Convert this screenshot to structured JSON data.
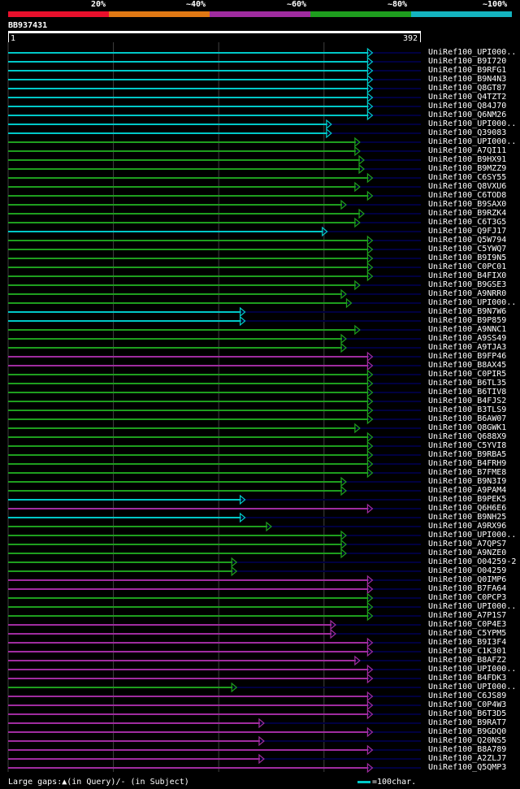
{
  "identity_legend": {
    "labels": [
      "20%",
      "~40%",
      "~60%",
      "~80%",
      "~100%"
    ],
    "colors": [
      "#e8102c",
      "#e07814",
      "#a02ca0",
      "#1e9e1e",
      "#14b4c0"
    ]
  },
  "query": {
    "id": "BB937431",
    "start": "1",
    "end": "392",
    "length": 392
  },
  "colors": {
    "background": "#000000",
    "track": "#000040",
    "grid": "#404040",
    "cyan": "#00c8c8",
    "green": "#1e9e1e",
    "magenta": "#a02ca0",
    "gap_marker": "#ffffa0"
  },
  "hits": [
    {
      "label": "UniRef100_UPI000..",
      "color": "cyan",
      "end": 346
    },
    {
      "label": "UniRef100_B9I720",
      "color": "cyan",
      "end": 346
    },
    {
      "label": "UniRef100_B9RFG1",
      "color": "cyan",
      "end": 346
    },
    {
      "label": "UniRef100_B9N4N3",
      "color": "cyan",
      "end": 346
    },
    {
      "label": "UniRef100_Q8GT87",
      "color": "cyan",
      "end": 346
    },
    {
      "label": "UniRef100_Q4TZT2",
      "color": "cyan",
      "end": 346
    },
    {
      "label": "UniRef100_Q84J70",
      "color": "cyan",
      "end": 346
    },
    {
      "label": "UniRef100_Q6NM26",
      "color": "cyan",
      "end": 346
    },
    {
      "label": "UniRef100_UPI000..",
      "color": "cyan",
      "end": 307
    },
    {
      "label": "UniRef100_Q39083",
      "color": "cyan",
      "end": 307
    },
    {
      "label": "UniRef100_UPI000..",
      "color": "green",
      "end": 334
    },
    {
      "label": "UniRef100_A7QI11",
      "color": "green",
      "end": 334
    },
    {
      "label": "UniRef100_B9HX91",
      "color": "green",
      "end": 338
    },
    {
      "label": "UniRef100_B9MZZ9",
      "color": "green",
      "end": 338
    },
    {
      "label": "UniRef100_C6SY55",
      "color": "green",
      "end": 346
    },
    {
      "label": "UniRef100_Q8VXU6",
      "color": "green",
      "end": 334
    },
    {
      "label": "UniRef100_C6TOD8",
      "color": "green",
      "end": 346
    },
    {
      "label": "UniRef100_B9SAX0",
      "color": "green",
      "end": 321
    },
    {
      "label": "UniRef100_B9RZK4",
      "color": "green",
      "end": 338
    },
    {
      "label": "UniRef100_C6T3G5",
      "color": "green",
      "end": 334
    },
    {
      "label": "UniRef100_Q9FJ17",
      "color": "cyan",
      "end": 303
    },
    {
      "label": "UniRef100_Q5W794",
      "color": "green",
      "end": 346
    },
    {
      "label": "UniRef100_C5YWQ7",
      "color": "green",
      "end": 346
    },
    {
      "label": "UniRef100_B9I9N5",
      "color": "green",
      "end": 346
    },
    {
      "label": "UniRef100_C0PC01",
      "color": "green",
      "end": 346
    },
    {
      "label": "UniRef100_B4FIX0",
      "color": "green",
      "end": 346
    },
    {
      "label": "UniRef100_B9GSE3",
      "color": "green",
      "end": 334
    },
    {
      "label": "UniRef100_A9NRR0",
      "color": "green",
      "end": 321
    },
    {
      "label": "UniRef100_UPI000..",
      "color": "green",
      "end": 326
    },
    {
      "label": "UniRef100_B9N7W6",
      "color": "cyan",
      "end": 225
    },
    {
      "label": "UniRef100_B9P859",
      "color": "cyan",
      "end": 225
    },
    {
      "label": "UniRef100_A9NNC1",
      "color": "green",
      "end": 334
    },
    {
      "label": "UniRef100_A9SS49",
      "color": "green",
      "end": 321
    },
    {
      "label": "UniRef100_A9TJA3",
      "color": "green",
      "end": 321
    },
    {
      "label": "UniRef100_B9FP46",
      "color": "magenta",
      "end": 346
    },
    {
      "label": "UniRef100_B8AX45",
      "color": "magenta",
      "end": 346
    },
    {
      "label": "UniRef100_C0PIR5",
      "color": "green",
      "end": 346
    },
    {
      "label": "UniRef100_B6TL35",
      "color": "green",
      "end": 346
    },
    {
      "label": "UniRef100_B6TIV8",
      "color": "green",
      "end": 346
    },
    {
      "label": "UniRef100_B4FJS2",
      "color": "green",
      "end": 346
    },
    {
      "label": "UniRef100_B3TLS9",
      "color": "green",
      "end": 346
    },
    {
      "label": "UniRef100_B6AW07",
      "color": "green",
      "end": 346
    },
    {
      "label": "UniRef100_Q8GWK1",
      "color": "green",
      "end": 334
    },
    {
      "label": "UniRef100_Q688X9",
      "color": "green",
      "end": 346
    },
    {
      "label": "UniRef100_C5YVI8",
      "color": "green",
      "end": 346
    },
    {
      "label": "UniRef100_B9RBA5",
      "color": "green",
      "end": 346
    },
    {
      "label": "UniRef100_B4FRH9",
      "color": "green",
      "end": 346
    },
    {
      "label": "UniRef100_B7FME8",
      "color": "green",
      "end": 346
    },
    {
      "label": "UniRef100_B9N3I9",
      "color": "green",
      "end": 321
    },
    {
      "label": "UniRef100_A9PAM4",
      "color": "green",
      "end": 321
    },
    {
      "label": "UniRef100_B9PEK5",
      "color": "cyan",
      "end": 225
    },
    {
      "label": "UniRef100_Q6H6E6",
      "color": "magenta",
      "end": 346
    },
    {
      "label": "UniRef100_B9NH25",
      "color": "cyan",
      "end": 225
    },
    {
      "label": "UniRef100_A9RX96",
      "color": "green",
      "end": 250
    },
    {
      "label": "UniRef100_UPI000..",
      "color": "green",
      "end": 321
    },
    {
      "label": "UniRef100_A7QPS7",
      "color": "green",
      "end": 321
    },
    {
      "label": "UniRef100_A9NZE0",
      "color": "green",
      "end": 321
    },
    {
      "label": "UniRef100_O04259-2",
      "color": "green",
      "end": 217
    },
    {
      "label": "UniRef100_O04259",
      "color": "green",
      "end": 217
    },
    {
      "label": "UniRef100_Q0IMP6",
      "color": "magenta",
      "end": 346
    },
    {
      "label": "UniRef100_B7FA64",
      "color": "magenta",
      "end": 346
    },
    {
      "label": "UniRef100_C0PCP3",
      "color": "green",
      "end": 346
    },
    {
      "label": "UniRef100_UPI000..",
      "color": "green",
      "end": 346
    },
    {
      "label": "UniRef100_A7P1S7",
      "color": "green",
      "end": 346
    },
    {
      "label": "UniRef100_C0P4E3",
      "color": "magenta",
      "end": 311
    },
    {
      "label": "UniRef100_C5YPM5",
      "color": "magenta",
      "end": 311
    },
    {
      "label": "UniRef100_B9I3F4",
      "color": "magenta",
      "end": 346
    },
    {
      "label": "UniRef100_C1K301",
      "color": "magenta",
      "end": 346
    },
    {
      "label": "UniRef100_B8AFZ2",
      "color": "magenta",
      "end": 334
    },
    {
      "label": "UniRef100_UPI000..",
      "color": "magenta",
      "end": 346
    },
    {
      "label": "UniRef100_B4FDK3",
      "color": "magenta",
      "end": 346
    },
    {
      "label": "UniRef100_UPI000..",
      "color": "green",
      "end": 217
    },
    {
      "label": "UniRef100_C6JS89",
      "color": "magenta",
      "end": 346
    },
    {
      "label": "UniRef100_C0P4W3",
      "color": "magenta",
      "end": 346
    },
    {
      "label": "UniRef100_B6T3D5",
      "color": "magenta",
      "end": 346
    },
    {
      "label": "UniRef100_B9RAT7",
      "color": "magenta",
      "end": 243
    },
    {
      "label": "UniRef100_B9GDQ0",
      "color": "magenta",
      "end": 346
    },
    {
      "label": "UniRef100_Q20NS5",
      "color": "magenta",
      "end": 243
    },
    {
      "label": "UniRef100_B8A789",
      "color": "magenta",
      "end": 346
    },
    {
      "label": "UniRef100_A2ZLJ7",
      "color": "magenta",
      "end": 243
    },
    {
      "label": "UniRef100_Q5QMP3",
      "color": "magenta",
      "end": 346
    }
  ],
  "footer": {
    "gap_note": "Large gaps:▲(in Query)/- (in Subject)",
    "scale_note": "=100char."
  }
}
